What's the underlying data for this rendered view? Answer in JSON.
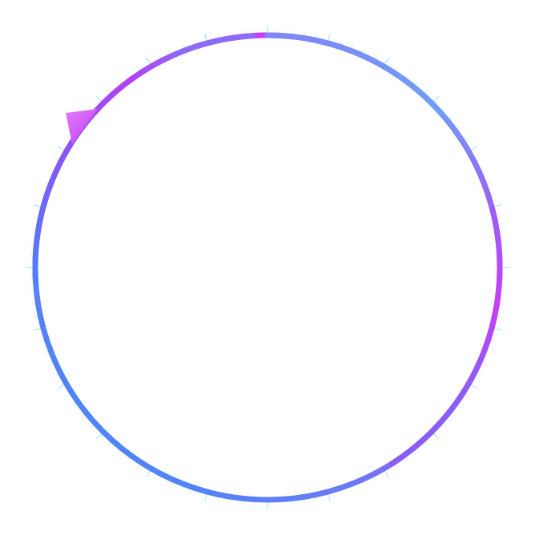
{
  "ring": {
    "gradient": [
      "#3b8cf7",
      "#6a7bf6",
      "#a14ef5",
      "#c93ef4",
      "#a14ef5",
      "#6f8ff7",
      "#6aa3f8"
    ],
    "tick_color": "#9fe4f7",
    "pointer_color": "#d454f7"
  }
}
